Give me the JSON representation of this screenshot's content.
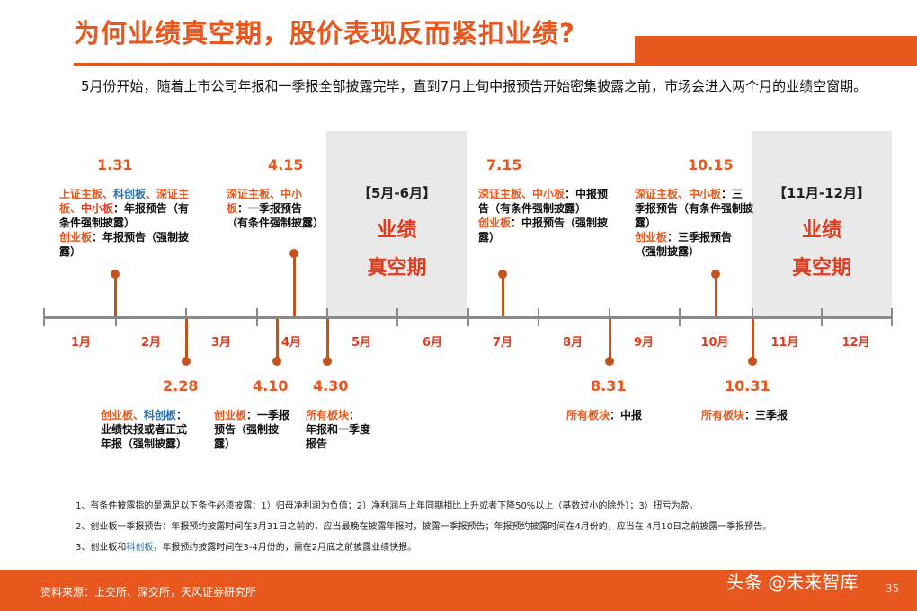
{
  "title": "为何业绩真空期，股价表现反而紧扣业绩?",
  "intro": "5月份开始，随着上市公司年报和一季报全部披露完毕，直到7月上旬中报预告开始密集披露之前，市场会进入两个月的业绩空窗期。",
  "panels": [
    {
      "label": "【5月-6月】",
      "line1": "业绩",
      "line2": "真空期"
    },
    {
      "label": "【11月-12月】",
      "line1": "业绩",
      "line2": "真空期"
    }
  ],
  "months": [
    "1月",
    "2月",
    "3月",
    "4月",
    "5月",
    "6月",
    "7月",
    "8月",
    "9月",
    "10月",
    "11月",
    "12月"
  ],
  "events_top": [
    {
      "date": "1.31",
      "p1": "上证主板、",
      "p2": "科创板",
      "p3": "、深证主板、",
      "p4": "中小板",
      "p5": "：年报预告（有条件强制披露）",
      "p6": "创业板",
      "p7": "：年报预告（强制披露）"
    },
    {
      "date": "4.15",
      "p1": "深证主板、中小板",
      "p2": "：一季报预告（有条件强制披露）"
    },
    {
      "date": "7.15",
      "p1": "深证主板、中小板",
      "p2": "：中报预告（有条件强制披露）",
      "p3": "创业板",
      "p4": "：中报预告（强制披露）"
    },
    {
      "date": "10.15",
      "p1": "深证主板、中小板",
      "p2": "：三季报预告（有条件强制披露）",
      "p3": "创业板",
      "p4": "：三季报预告（强制披露）"
    }
  ],
  "events_bottom": [
    {
      "date": "2.28",
      "p1": "创业板、",
      "p2": "科创板",
      "p3": "：",
      "p4": "业绩快报或者正式年报（强制披露）"
    },
    {
      "date": "4.10",
      "p1": "创业板",
      "p2": "：一季报预告（强制披露）"
    },
    {
      "date": "4.30",
      "p1": "所有板块",
      "p2": "：",
      "p3": "年报和一季度报告"
    },
    {
      "date": "8.31",
      "p1": "所有板块",
      "p2": "：中报"
    },
    {
      "date": "10.31",
      "p1": "所有板块",
      "p2": "：三季报"
    }
  ],
  "notes": [
    "1、有条件披露指的是满足以下条件必须披露：1）归母净利润为负值；2）净利润与上年同期相比上升或者下降50%以上（基数过小的除外）；3）扭亏为盈。",
    "2、创业板一季报预告：年报预约披露时间在3月31日之前的，应当最晚在披露年报时，披露一季报预告；年报预约披露时间在4月份的，应当在 4月10日之前披露一季报预告。",
    {
      "a": "3、创业板和",
      "b": "科创板",
      "c": "，年报预约披露时间在3-4月份的，需在2月底之前披露业绩快报。"
    }
  ],
  "footer": {
    "source": "资料来源：上交所、深交所，天风证券研究所",
    "watermark": "头条 @未来智库",
    "page": "35"
  },
  "colors": {
    "accent": "#e8571d",
    "red": "#e23a1d",
    "blue": "#2a6fb3",
    "panel": "#e9e9e9",
    "axis": "#8a8a8a"
  }
}
